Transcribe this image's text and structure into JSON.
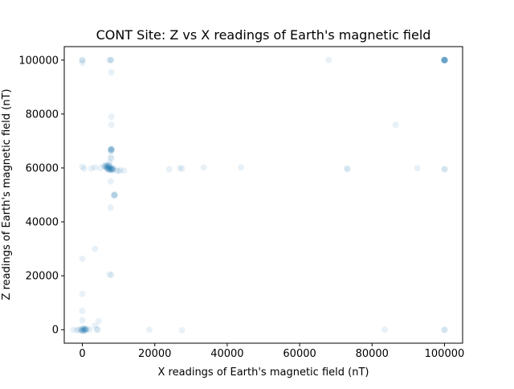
{
  "chart_data": {
    "type": "scatter",
    "title": "CONT Site: Z vs X readings of Earth's magnetic field",
    "xlabel": "X readings of Earth's magnetic field (nT)",
    "ylabel": "Z readings of Earth's magnetic field (nT)",
    "xlim": [
      -5000,
      105000
    ],
    "ylim": [
      -5000,
      105000
    ],
    "xticks": [
      0,
      20000,
      40000,
      60000,
      80000,
      100000
    ],
    "yticks": [
      0,
      20000,
      40000,
      60000,
      80000,
      100000
    ],
    "xtick_labels": [
      "0",
      "20000",
      "40000",
      "60000",
      "80000",
      "100000"
    ],
    "ytick_labels": [
      "0",
      "20000",
      "40000",
      "60000",
      "80000",
      "100000"
    ],
    "grid": false,
    "point_color": "#1f77b4",
    "point_alpha": 0.1,
    "series": [
      {
        "points": [
          [
            0,
            100000
          ],
          [
            0,
            100000
          ],
          [
            0,
            99000
          ],
          [
            7500,
            100000
          ],
          [
            7800,
            100000
          ],
          [
            8000,
            100000
          ],
          [
            100000,
            100000
          ],
          [
            100000,
            100000
          ],
          [
            100000,
            100000
          ],
          [
            100000,
            100000
          ],
          [
            100000,
            100000
          ],
          [
            100000,
            100000
          ],
          [
            100000,
            100000
          ],
          [
            100000,
            100000
          ],
          [
            99800,
            100000
          ],
          [
            100200,
            100000
          ],
          [
            68000,
            100000
          ],
          [
            8000,
            95500
          ],
          [
            8000,
            79000
          ],
          [
            8000,
            76000
          ],
          [
            7900,
            67000
          ],
          [
            8000,
            66800
          ],
          [
            8000,
            66500
          ],
          [
            7900,
            66200
          ],
          [
            8100,
            67100
          ],
          [
            8000,
            66900
          ],
          [
            7900,
            66600
          ],
          [
            7800,
            64000
          ],
          [
            8000,
            63500
          ],
          [
            7500,
            62000
          ],
          [
            6000,
            60800
          ],
          [
            6200,
            60500
          ],
          [
            6500,
            60200
          ],
          [
            6800,
            60000
          ],
          [
            7000,
            59800
          ],
          [
            7200,
            59600
          ],
          [
            7400,
            59500
          ],
          [
            7600,
            59400
          ],
          [
            7800,
            59300
          ],
          [
            8000,
            59200
          ],
          [
            8200,
            59300
          ],
          [
            8400,
            59400
          ],
          [
            8600,
            59500
          ],
          [
            6400,
            60900
          ],
          [
            6600,
            61000
          ],
          [
            7000,
            60600
          ],
          [
            7300,
            60300
          ],
          [
            7600,
            60100
          ],
          [
            7900,
            59900
          ],
          [
            8100,
            59700
          ],
          [
            8300,
            59600
          ],
          [
            7100,
            61000
          ],
          [
            6800,
            60400
          ],
          [
            7500,
            60700
          ],
          [
            8500,
            60000
          ],
          [
            7200,
            59300
          ],
          [
            7700,
            59700
          ],
          [
            6900,
            59900
          ],
          [
            7400,
            60900
          ],
          [
            0,
            60400
          ],
          [
            500,
            59800
          ],
          [
            2500,
            59800
          ],
          [
            3500,
            60200
          ],
          [
            5000,
            60000
          ],
          [
            9500,
            59000
          ],
          [
            10500,
            59200
          ],
          [
            11500,
            59000
          ],
          [
            10000,
            58800
          ],
          [
            24000,
            59500
          ],
          [
            27000,
            60000
          ],
          [
            27500,
            59700
          ],
          [
            33500,
            60100
          ],
          [
            43800,
            60200
          ],
          [
            73000,
            59800
          ],
          [
            73300,
            59500
          ],
          [
            92500,
            59900
          ],
          [
            100000,
            59700
          ],
          [
            100000,
            59400
          ],
          [
            86500,
            76000
          ],
          [
            7800,
            55000
          ],
          [
            8800,
            50000
          ],
          [
            8900,
            49700
          ],
          [
            9000,
            50200
          ],
          [
            8700,
            49900
          ],
          [
            7800,
            45300
          ],
          [
            3500,
            30000
          ],
          [
            0,
            26300
          ],
          [
            7500,
            20500
          ],
          [
            8000,
            20300
          ],
          [
            0,
            13300
          ],
          [
            0,
            7000
          ],
          [
            0,
            3500
          ],
          [
            4500,
            3200
          ],
          [
            3500,
            1500
          ],
          [
            -1000,
            0
          ],
          [
            -500,
            100
          ],
          [
            0,
            0
          ],
          [
            200,
            -200
          ],
          [
            400,
            300
          ],
          [
            600,
            100
          ],
          [
            800,
            0
          ],
          [
            1000,
            -100
          ],
          [
            1200,
            200
          ],
          [
            -300,
            -300
          ],
          [
            100,
            500
          ],
          [
            300,
            -500
          ],
          [
            500,
            400
          ],
          [
            700,
            -300
          ],
          [
            900,
            250
          ],
          [
            0,
            -400
          ],
          [
            -2500,
            0
          ],
          [
            -1500,
            -200
          ],
          [
            2000,
            0
          ],
          [
            4000,
            0
          ],
          [
            4200,
            100
          ],
          [
            18500,
            0
          ],
          [
            27500,
            -200
          ],
          [
            83500,
            0
          ],
          [
            100000,
            0
          ],
          [
            100000,
            -100
          ]
        ]
      }
    ]
  }
}
